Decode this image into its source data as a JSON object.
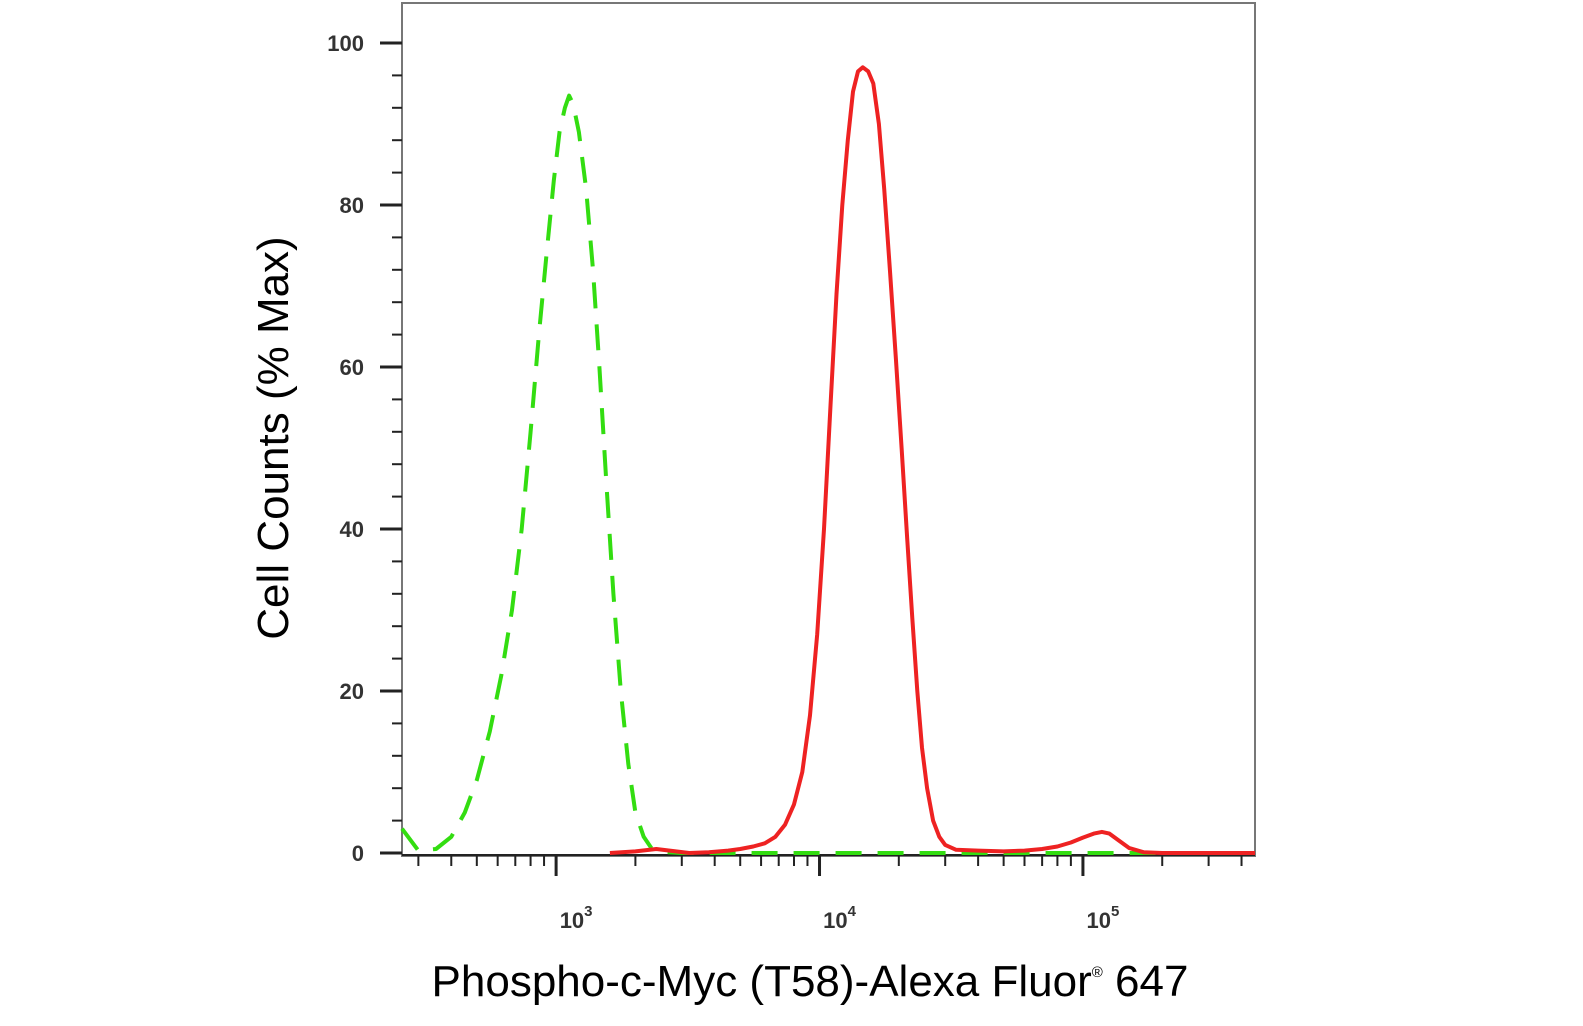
{
  "chart_data": {
    "type": "line",
    "xlabel": "Phospho-c-Myc (T58)-Alexa Fluor",
    "xlabel_super": "®",
    "xlabel_suffix": " 647",
    "ylabel": "Cell Counts (% Max)",
    "x_scale": "log",
    "xlim": [
      260,
      450000
    ],
    "ylim": [
      0,
      105
    ],
    "y_ticks": [
      0,
      20,
      40,
      60,
      80,
      100
    ],
    "x_major_ticks": [
      {
        "value": 1000,
        "base": "10",
        "exp": "3"
      },
      {
        "value": 10000,
        "base": "10",
        "exp": "4"
      },
      {
        "value": 100000,
        "base": "10",
        "exp": "5"
      }
    ],
    "grid": false,
    "legend": "none",
    "series": [
      {
        "style": "dashed",
        "color": "#33dd11",
        "points": [
          [
            260,
            3
          ],
          [
            300,
            0.3
          ],
          [
            350,
            0.5
          ],
          [
            400,
            2
          ],
          [
            450,
            5
          ],
          [
            500,
            9
          ],
          [
            560,
            15
          ],
          [
            620,
            22
          ],
          [
            680,
            30
          ],
          [
            740,
            40
          ],
          [
            800,
            52
          ],
          [
            860,
            64
          ],
          [
            920,
            74
          ],
          [
            980,
            83
          ],
          [
            1030,
            89
          ],
          [
            1080,
            92
          ],
          [
            1120,
            93.5
          ],
          [
            1160,
            92.5
          ],
          [
            1220,
            89
          ],
          [
            1300,
            82
          ],
          [
            1380,
            72
          ],
          [
            1460,
            60
          ],
          [
            1550,
            46
          ],
          [
            1650,
            32
          ],
          [
            1760,
            20
          ],
          [
            1880,
            11
          ],
          [
            2000,
            5
          ],
          [
            2150,
            2
          ],
          [
            2300,
            0.6
          ],
          [
            2600,
            0.1
          ],
          [
            3000,
            0
          ],
          [
            10000,
            0
          ],
          [
            100000,
            0
          ],
          [
            450000,
            0
          ]
        ]
      },
      {
        "style": "solid",
        "color": "#ee2222",
        "points": [
          [
            1600,
            0
          ],
          [
            2000,
            0.2
          ],
          [
            2400,
            0.5
          ],
          [
            2700,
            0.3
          ],
          [
            3200,
            0
          ],
          [
            3800,
            0.1
          ],
          [
            4500,
            0.3
          ],
          [
            5000,
            0.5
          ],
          [
            5600,
            0.8
          ],
          [
            6200,
            1.2
          ],
          [
            6800,
            2
          ],
          [
            7400,
            3.5
          ],
          [
            8000,
            6
          ],
          [
            8600,
            10
          ],
          [
            9200,
            17
          ],
          [
            9800,
            27
          ],
          [
            10400,
            40
          ],
          [
            11000,
            55
          ],
          [
            11600,
            69
          ],
          [
            12200,
            80
          ],
          [
            12800,
            88
          ],
          [
            13400,
            94
          ],
          [
            14000,
            96.5
          ],
          [
            14600,
            97
          ],
          [
            15300,
            96.5
          ],
          [
            16000,
            95
          ],
          [
            16800,
            90
          ],
          [
            17600,
            82
          ],
          [
            18500,
            72
          ],
          [
            19500,
            61
          ],
          [
            20500,
            50
          ],
          [
            21500,
            39
          ],
          [
            22500,
            29
          ],
          [
            23500,
            20
          ],
          [
            24500,
            13
          ],
          [
            25600,
            8
          ],
          [
            27000,
            4
          ],
          [
            28500,
            2
          ],
          [
            30000,
            1
          ],
          [
            33000,
            0.4
          ],
          [
            40000,
            0.3
          ],
          [
            50000,
            0.2
          ],
          [
            60000,
            0.3
          ],
          [
            70000,
            0.5
          ],
          [
            80000,
            0.8
          ],
          [
            90000,
            1.3
          ],
          [
            100000,
            1.9
          ],
          [
            110000,
            2.4
          ],
          [
            118000,
            2.6
          ],
          [
            126000,
            2.4
          ],
          [
            136000,
            1.6
          ],
          [
            150000,
            0.6
          ],
          [
            170000,
            0.1
          ],
          [
            200000,
            0
          ],
          [
            450000,
            0
          ]
        ]
      }
    ]
  }
}
